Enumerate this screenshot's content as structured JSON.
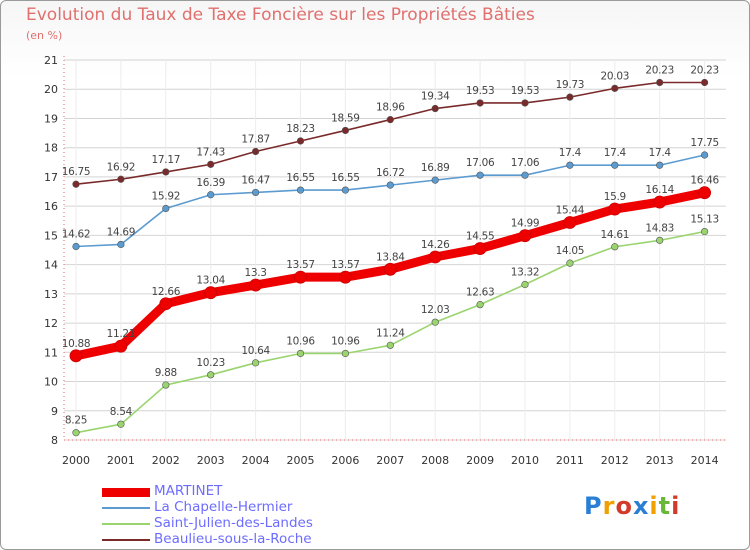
{
  "title": "Evolution du Taux de Taxe Foncière sur les Propriétés Bâties",
  "unit_label": "(en %)",
  "logo_text": "Proxiti",
  "chart_data": {
    "type": "line",
    "title": "Evolution du Taux de Taxe Foncière sur les Propriétés Bâties",
    "ylabel": "(en %)",
    "xlabel": "",
    "x": [
      "2000",
      "2001",
      "2002",
      "2003",
      "2004",
      "2005",
      "2006",
      "2007",
      "2008",
      "2009",
      "2010",
      "2011",
      "2012",
      "2013",
      "2014"
    ],
    "ylim": [
      8,
      21
    ],
    "yticks": [
      8,
      9,
      10,
      11,
      12,
      13,
      14,
      15,
      16,
      17,
      18,
      19,
      20,
      21
    ],
    "grid": "horizontal",
    "legend_position": "bottom-left",
    "series": [
      {
        "name": "MARTINET",
        "color": "#ee0000",
        "values": [
          10.88,
          11.21,
          12.66,
          13.04,
          13.3,
          13.57,
          13.57,
          13.84,
          14.26,
          14.55,
          14.99,
          15.44,
          15.9,
          16.14,
          16.46
        ],
        "labels": [
          "10.88",
          "11.21",
          "12.66",
          "13.04",
          "13.3",
          "13.57",
          "13.57",
          "13.84",
          "14.26",
          "14.55",
          "14.99",
          "15.44",
          "15.9",
          "16.14",
          "16.46"
        ]
      },
      {
        "name": "La Chapelle-Hermier",
        "color": "#5b9bd0",
        "values": [
          14.62,
          14.69,
          15.92,
          16.39,
          16.47,
          16.55,
          16.55,
          16.72,
          16.89,
          17.06,
          17.06,
          17.4,
          17.4,
          17.4,
          17.75
        ],
        "labels": [
          "14.62",
          "14.69",
          "15.92",
          "16.39",
          "16.47",
          "16.55",
          "16.55",
          "16.72",
          "16.89",
          "17.06",
          "17.06",
          "17.4",
          "17.4",
          "17.4",
          "17.75"
        ]
      },
      {
        "name": "Saint-Julien-des-Landes",
        "color": "#9ad46e",
        "values": [
          8.25,
          8.54,
          9.88,
          10.23,
          10.64,
          10.96,
          10.96,
          11.24,
          12.03,
          12.63,
          13.32,
          14.05,
          14.61,
          14.83,
          15.13
        ],
        "labels": [
          "8.25",
          "8.54",
          "9.88",
          "10.23",
          "10.64",
          "10.96",
          "10.96",
          "11.24",
          "12.03",
          "12.63",
          "13.32",
          "14.05",
          "14.61",
          "14.83",
          "15.13"
        ]
      },
      {
        "name": "Beaulieu-sous-la-Roche",
        "color": "#7a2a2a",
        "values": [
          16.75,
          16.92,
          17.17,
          17.43,
          17.87,
          18.23,
          18.59,
          18.96,
          19.34,
          19.53,
          19.53,
          19.73,
          20.03,
          20.23,
          20.23
        ],
        "labels": [
          "16.75",
          "16.92",
          "17.17",
          "17.43",
          "17.87",
          "18.23",
          "18.59",
          "18.96",
          "19.34",
          "19.53",
          "19.53",
          "19.73",
          "20.03",
          "20.23",
          "20.23"
        ]
      }
    ]
  }
}
